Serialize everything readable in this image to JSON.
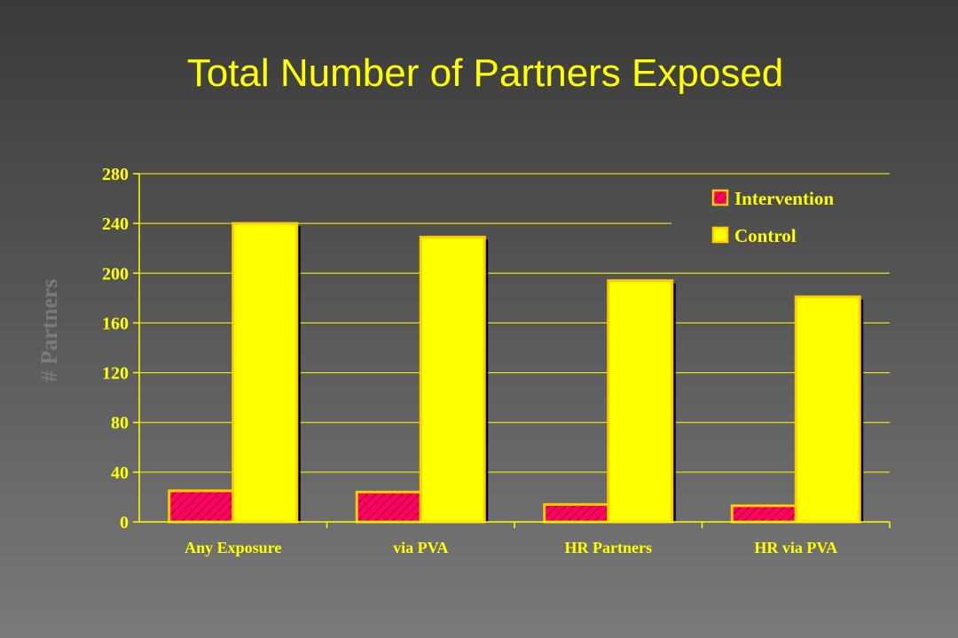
{
  "slide": {
    "title": "Total Number of Partners Exposed"
  },
  "chart_data": {
    "type": "bar",
    "title": "Total Number of Partners Exposed",
    "xlabel": "",
    "ylabel": "# Partners",
    "categories": [
      "Any Exposure",
      "via PVA",
      "HR Partners",
      "HR via PVA"
    ],
    "series": [
      {
        "name": "Intervention",
        "values": [
          25,
          24,
          14,
          13
        ],
        "color": "#ff0066",
        "pattern": "hatched"
      },
      {
        "name": "Control",
        "values": [
          240,
          229,
          194,
          181
        ],
        "color": "#ffff00",
        "pattern": "solid"
      }
    ],
    "ylim": [
      0,
      280
    ],
    "yticks": [
      0,
      40,
      80,
      120,
      160,
      200,
      240,
      280
    ],
    "grid": true,
    "legend_position": "top-right",
    "colors": {
      "axis": "#ffff00",
      "gridline": "#ffff00",
      "bar_outline": "#ffcc00",
      "bar_shadow": "#000000",
      "ylabel": "#7a7a7a"
    }
  }
}
